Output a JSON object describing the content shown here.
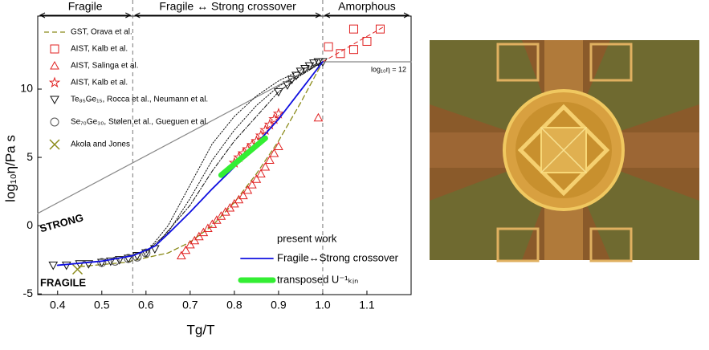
{
  "chart_data": {
    "type": "line",
    "x_label": "Tg/T",
    "y_label": "log₁₀η/Pa s",
    "xlim": [
      0.355,
      1.2
    ],
    "ylim": [
      -5.05,
      15.35
    ],
    "xticks": [
      0.4,
      0.5,
      0.6,
      0.7,
      0.8,
      0.9,
      {
        "value": 1,
        "label": "1.0"
      },
      1.1
    ],
    "yticks": [
      -5,
      0,
      5,
      10
    ],
    "vlines": [
      0.57,
      1.0
    ],
    "regions": [
      {
        "label": "Fragile",
        "from": 0.355,
        "to": 0.57
      },
      {
        "label": "Fragile ↔ Strong crossover",
        "from": 0.57,
        "to": 1.0
      },
      {
        "label": "Amorphous",
        "from": 1.0,
        "to": 1.2
      }
    ],
    "strong_label": "STRONG",
    "fragile_label": "FRAGILE",
    "eta12_label": "log₁₀η = 12",
    "present_work_label": "present work",
    "series": [
      {
        "name": "GST, Orava et al.",
        "color": "#8b8b1a",
        "marker": "none",
        "dash": "6,4",
        "width": 1.3,
        "legend": "top",
        "x": [
          0.45,
          0.55,
          0.65,
          0.7,
          0.75,
          0.8,
          0.85,
          0.9,
          0.95,
          1.0
        ],
        "values": [
          -3.0,
          -2.7,
          -2.0,
          -1.2,
          0.0,
          1.7,
          3.8,
          6.2,
          9.0,
          12.0
        ]
      },
      {
        "name": "AIST, Kalb et al.",
        "color": "#e02020",
        "marker": "square",
        "legend": "top",
        "x": [
          1.013,
          1.04,
          1.07,
          1.07,
          1.1,
          1.13
        ],
        "values": [
          13.1,
          12.6,
          14.4,
          12.9,
          13.5,
          14.4
        ]
      },
      {
        "name": "AIST, Salinga et al.",
        "color": "#e02020",
        "marker": "triangle",
        "legend": "top",
        "x": [
          0.68,
          0.69,
          0.7,
          0.71,
          0.72,
          0.73,
          0.74,
          0.75,
          0.76,
          0.77,
          0.78,
          0.79,
          0.8,
          0.81,
          0.82,
          0.83,
          0.84,
          0.85,
          0.86,
          0.87,
          0.88,
          0.89,
          0.9,
          0.99
        ],
        "values": [
          -2.2,
          -1.8,
          -1.4,
          -1.1,
          -0.8,
          -0.5,
          -0.2,
          0.1,
          0.4,
          0.7,
          1.0,
          1.3,
          1.6,
          1.9,
          2.2,
          2.6,
          3.0,
          3.4,
          3.8,
          4.3,
          4.8,
          5.3,
          5.8,
          7.9
        ]
      },
      {
        "name": "AIST, Kalb et al.",
        "color": "#e02020",
        "marker": "star",
        "legend": "top",
        "x": [
          0.8,
          0.81,
          0.82,
          0.83,
          0.84,
          0.85,
          0.86,
          0.87,
          0.88,
          0.89,
          0.9
        ],
        "values": [
          4.6,
          5.0,
          5.3,
          5.6,
          5.9,
          6.2,
          6.6,
          7.0,
          7.4,
          7.8,
          8.2
        ]
      },
      {
        "name": "Te₈₅Ge₁₅, Rocca et al., Neumann et al.",
        "color": "#111111",
        "marker": "triangle-down",
        "legend": "top",
        "x": [
          0.39,
          0.42,
          0.45,
          0.47,
          0.5,
          0.52,
          0.54,
          0.56,
          0.58,
          0.6,
          0.62,
          0.9,
          0.92,
          0.93,
          0.94,
          0.95,
          0.96,
          0.97,
          0.98,
          0.99,
          1.0
        ],
        "values": [
          -2.9,
          -2.9,
          -2.8,
          -2.8,
          -2.7,
          -2.6,
          -2.5,
          -2.4,
          -2.2,
          -2.0,
          -1.7,
          9.8,
          10.3,
          10.7,
          11.0,
          11.3,
          11.5,
          11.7,
          11.9,
          12.0,
          12.0
        ]
      },
      {
        "name": "Se₇₀Ge₃₀, Stølen et al., Gueguen et al.",
        "color": "#555555",
        "marker": "circle",
        "legend": "top",
        "x": [
          0.5,
          0.53,
          0.56,
          0.58,
          0.6
        ],
        "values": [
          -2.7,
          -2.6,
          -2.4,
          -2.3,
          -2.0
        ]
      },
      {
        "name": "Akola and Jones",
        "color": "#8b8b1a",
        "marker": "x",
        "legend": "top",
        "x": [
          0.445
        ],
        "values": [
          -3.2
        ]
      },
      {
        "color": "#888888",
        "marker": "none",
        "width": 1.2,
        "x": [
          0.355,
          1.0
        ],
        "values": [
          0.9,
          12.0
        ]
      },
      {
        "color": "#888888",
        "marker": "none",
        "width": 1.2,
        "x": [
          1.0,
          1.2
        ],
        "values": [
          12.0,
          12.0
        ]
      },
      {
        "color": "#e02020",
        "marker": "none",
        "dash": "5,4",
        "width": 1,
        "x": [
          1.0,
          1.14
        ],
        "values": [
          12.0,
          14.6
        ]
      },
      {
        "color": "#111111",
        "marker": "none",
        "dash": "1.5,2",
        "width": 1,
        "x": [
          0.6,
          0.65,
          0.7,
          0.75,
          0.8,
          0.85,
          0.9,
          0.95,
          1.0
        ],
        "values": [
          -2.0,
          0.0,
          3.0,
          6.0,
          8.0,
          9.5,
          10.6,
          11.4,
          12.0
        ]
      },
      {
        "color": "#111111",
        "marker": "none",
        "dash": "1.5,2",
        "width": 1,
        "x": [
          0.6,
          0.65,
          0.7,
          0.75,
          0.8,
          0.85,
          0.9,
          1.0
        ],
        "values": [
          -1.9,
          -0.5,
          2.0,
          4.8,
          7.0,
          8.8,
          10.2,
          12.0
        ]
      },
      {
        "color": "#111111",
        "marker": "none",
        "dash": "5,2,1.5,2",
        "width": 1,
        "x": [
          0.62,
          0.7,
          0.75,
          0.8,
          0.85,
          0.9,
          0.95,
          1.0
        ],
        "values": [
          -1.5,
          1.5,
          4.0,
          6.2,
          8.0,
          9.8,
          11.0,
          12.0
        ]
      },
      {
        "name": "Fragile↔Strong crossover",
        "color": "#1010e0",
        "marker": "none",
        "width": 1.8,
        "legend": "bottom",
        "x": [
          0.4,
          0.5,
          0.57,
          0.6,
          0.62,
          0.65,
          0.7,
          0.75,
          0.8,
          0.85,
          0.9,
          0.95,
          1.0
        ],
        "values": [
          -2.9,
          -2.6,
          -2.2,
          -1.8,
          -1.5,
          -0.6,
          1.0,
          2.7,
          4.3,
          6.0,
          7.8,
          9.9,
          12.0
        ]
      },
      {
        "name": "transposed U⁻¹ₖᵢₙ",
        "color": "#33ee33",
        "marker": "none",
        "width": 7,
        "legend": "bottom",
        "x": [
          0.77,
          0.87
        ],
        "values": [
          3.7,
          6.4
        ]
      }
    ]
  }
}
